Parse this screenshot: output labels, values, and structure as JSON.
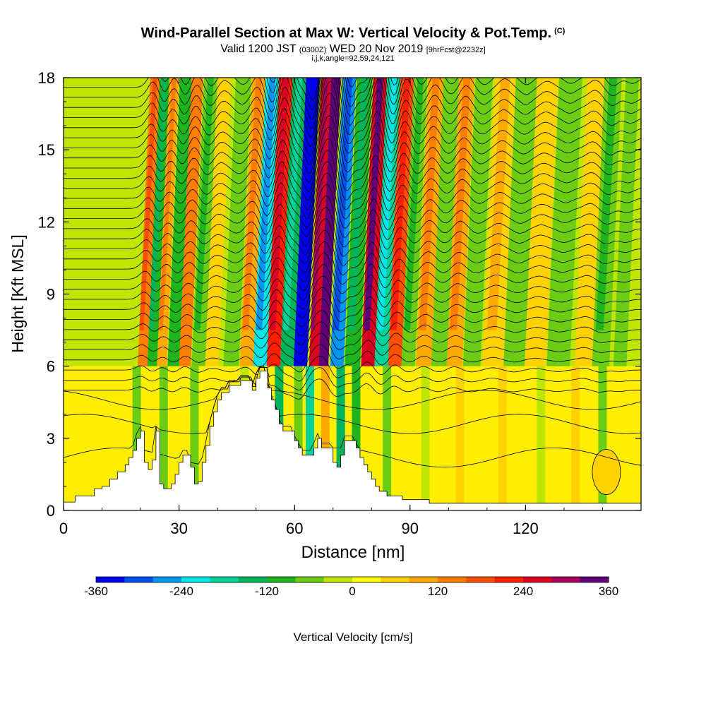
{
  "chart_data": {
    "type": "heatmap",
    "title": "Wind-Parallel Section at Max W: Vertical Velocity & Pot.Temp.",
    "title_mark": "(C)",
    "subtitle_main": "Valid 1200 JST",
    "subtitle_utc": "(0300Z)",
    "subtitle_date": "WED 20 Nov 2019",
    "subtitle_fcst": "[9hrFcst@2232z]",
    "indices": "i,j,k,angle=92,59,24,121",
    "xlabel": "Distance [nm]",
    "ylabel": "Height [Kft MSL]",
    "xlim": [
      0,
      150
    ],
    "ylim": [
      0,
      18
    ],
    "xticks": [
      "0",
      "30",
      "60",
      "90",
      "120"
    ],
    "yticks": [
      "0",
      "3",
      "6",
      "9",
      "12",
      "15",
      "18"
    ],
    "colorbar": {
      "label": "Vertical Velocity [cm/s]",
      "ticks": [
        "-360",
        "-240",
        "-120",
        "0",
        "120",
        "240",
        "360"
      ],
      "range": [
        -360,
        360
      ],
      "colors": [
        "#0000ee",
        "#0050ee",
        "#0096f0",
        "#00e6e6",
        "#00d29a",
        "#00b45a",
        "#1eb41e",
        "#6ccc14",
        "#c0e600",
        "#ffff00",
        "#ffd200",
        "#ffaa00",
        "#ff7d00",
        "#ff5000",
        "#ff1e00",
        "#dc0023",
        "#a5005a",
        "#5f0078"
      ]
    },
    "series": [
      {
        "values": [
          {
            "x": 22,
            "w": 150
          },
          {
            "x": 24.5,
            "w": -100
          },
          {
            "x": 27,
            "w": 110
          },
          {
            "x": 30,
            "w": -90
          },
          {
            "x": 33,
            "w": 120
          },
          {
            "x": 36.5,
            "w": -80
          },
          {
            "x": 40,
            "w": 60
          },
          {
            "x": 45,
            "w": -60
          },
          {
            "x": 49,
            "w": 100
          },
          {
            "x": 52.5,
            "w": -220
          },
          {
            "x": 56,
            "w": 200
          },
          {
            "x": 59.5,
            "w": -130
          },
          {
            "x": 63,
            "w": -340
          },
          {
            "x": 66.5,
            "w": 250
          },
          {
            "x": 69,
            "w": 340
          },
          {
            "x": 72.5,
            "w": -250
          },
          {
            "x": 76.5,
            "w": -110
          },
          {
            "x": 80.5,
            "w": 260
          },
          {
            "x": 84,
            "w": -170
          },
          {
            "x": 87.5,
            "w": 170
          },
          {
            "x": 91,
            "w": -70
          },
          {
            "x": 95,
            "w": 110
          },
          {
            "x": 99,
            "w": -60
          },
          {
            "x": 103,
            "w": 100
          },
          {
            "x": 107.5,
            "w": -60
          },
          {
            "x": 113,
            "w": 70
          },
          {
            "x": 118.5,
            "w": -60
          },
          {
            "x": 124,
            "w": 50
          },
          {
            "x": 130,
            "w": -50
          },
          {
            "x": 136.5,
            "w": 60
          },
          {
            "x": 141,
            "w": -70
          },
          {
            "x": 146,
            "w": -50
          }
        ]
      }
    ],
    "terrain_kft": [
      [
        0,
        0.35
      ],
      [
        3,
        0.35
      ],
      [
        3,
        0.6
      ],
      [
        8,
        0.6
      ],
      [
        8,
        0.9
      ],
      [
        10,
        0.9
      ],
      [
        10,
        1.0
      ],
      [
        12,
        1.0
      ],
      [
        12,
        1.3
      ],
      [
        14,
        1.3
      ],
      [
        14,
        1.6
      ],
      [
        16,
        1.6
      ],
      [
        16,
        1.9
      ],
      [
        17,
        1.9
      ],
      [
        17,
        2.2
      ],
      [
        18,
        2.2
      ],
      [
        18,
        2.5
      ],
      [
        19,
        2.5
      ],
      [
        19,
        3.0
      ],
      [
        20,
        3.0
      ],
      [
        20,
        3.3
      ],
      [
        21,
        3.3
      ],
      [
        21,
        2.0
      ],
      [
        22,
        2.0
      ],
      [
        22,
        1.7
      ],
      [
        23,
        1.7
      ],
      [
        23,
        2.1
      ],
      [
        24,
        2.1
      ],
      [
        24,
        3.3
      ],
      [
        25,
        3.3
      ],
      [
        25,
        1.1
      ],
      [
        26,
        1.1
      ],
      [
        26,
        0.9
      ],
      [
        28,
        0.9
      ],
      [
        28,
        1.1
      ],
      [
        29,
        1.1
      ],
      [
        29,
        1.5
      ],
      [
        30,
        1.5
      ],
      [
        30,
        2.0
      ],
      [
        31,
        2.0
      ],
      [
        31,
        2.3
      ],
      [
        33,
        2.3
      ],
      [
        33,
        1.8
      ],
      [
        34,
        1.8
      ],
      [
        34,
        1.1
      ],
      [
        35,
        1.1
      ],
      [
        35,
        1.2
      ],
      [
        36,
        1.2
      ],
      [
        36,
        2.0
      ],
      [
        37,
        2.0
      ],
      [
        37,
        2.7
      ],
      [
        38,
        2.7
      ],
      [
        38,
        3.5
      ],
      [
        39,
        3.5
      ],
      [
        39,
        4.1
      ],
      [
        40,
        4.1
      ],
      [
        40,
        4.6
      ],
      [
        41,
        4.6
      ],
      [
        41,
        4.9
      ],
      [
        43,
        4.9
      ],
      [
        43,
        5.2
      ],
      [
        46,
        5.2
      ],
      [
        46,
        5.4
      ],
      [
        49,
        5.4
      ],
      [
        49,
        5.0
      ],
      [
        50,
        5.0
      ],
      [
        50,
        5.5
      ],
      [
        51,
        5.5
      ],
      [
        51,
        5.8
      ],
      [
        53,
        5.8
      ],
      [
        53,
        5.1
      ],
      [
        54,
        5.1
      ],
      [
        54,
        4.6
      ],
      [
        55,
        4.6
      ],
      [
        55,
        4.2
      ],
      [
        56,
        4.2
      ],
      [
        56,
        3.6
      ],
      [
        57,
        3.6
      ],
      [
        57,
        3.3
      ],
      [
        60,
        3.3
      ],
      [
        60,
        2.9
      ],
      [
        61,
        2.9
      ],
      [
        61,
        2.6
      ],
      [
        62,
        2.6
      ],
      [
        62,
        2.3
      ],
      [
        65,
        2.3
      ],
      [
        65,
        2.6
      ],
      [
        66,
        2.6
      ],
      [
        66,
        3.0
      ],
      [
        67,
        3.0
      ],
      [
        67,
        2.6
      ],
      [
        70,
        2.6
      ],
      [
        70,
        2.0
      ],
      [
        71,
        2.0
      ],
      [
        71,
        1.8
      ],
      [
        72,
        1.8
      ],
      [
        72,
        2.3
      ],
      [
        73,
        2.3
      ],
      [
        73,
        2.9
      ],
      [
        76,
        2.9
      ],
      [
        76,
        2.6
      ],
      [
        77,
        2.6
      ],
      [
        77,
        2.2
      ],
      [
        78,
        2.2
      ],
      [
        78,
        1.9
      ],
      [
        79,
        1.9
      ],
      [
        79,
        1.6
      ],
      [
        80,
        1.6
      ],
      [
        80,
        1.3
      ],
      [
        81,
        1.3
      ],
      [
        81,
        1.0
      ],
      [
        82,
        1.0
      ],
      [
        82,
        0.8
      ],
      [
        84,
        0.8
      ],
      [
        84,
        0.6
      ],
      [
        88,
        0.6
      ],
      [
        88,
        0.45
      ],
      [
        95,
        0.45
      ],
      [
        95,
        0.3
      ],
      [
        150,
        0.3
      ]
    ]
  }
}
